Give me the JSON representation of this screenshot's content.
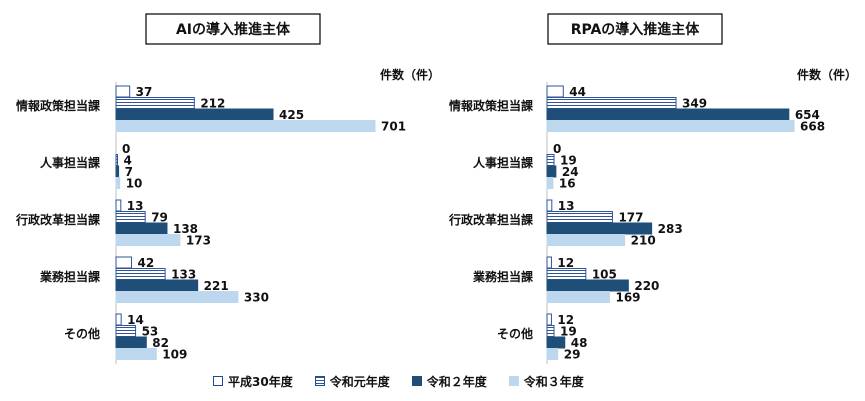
{
  "colors": {
    "s1_fill": "#ffffff",
    "s1_border": "#2f5597",
    "s2_stripe": "#2f5597",
    "s3_fill": "#1f4e79",
    "s4_fill": "#bdd7ee",
    "axis": "#bfbfbf",
    "text": "#111111"
  },
  "legend": {
    "items": [
      "平成30年度",
      "令和元年度",
      "令和２年度",
      "令和３年度"
    ]
  },
  "chart_data": [
    {
      "type": "bar",
      "orientation": "horizontal",
      "title": "AIの導入推進主体",
      "unit_label": "件数（件）",
      "categories": [
        "情報政策担当課",
        "人事担当課",
        "行政改革担当課",
        "業務担当課",
        "その他"
      ],
      "series": [
        {
          "name": "平成30年度",
          "values": [
            37,
            0,
            13,
            42,
            14
          ]
        },
        {
          "name": "令和元年度",
          "values": [
            212,
            4,
            79,
            133,
            53
          ]
        },
        {
          "name": "令和２年度",
          "values": [
            425,
            7,
            138,
            221,
            82
          ]
        },
        {
          "name": "令和３年度",
          "values": [
            701,
            10,
            173,
            330,
            109
          ]
        }
      ],
      "xlim": [
        0,
        701
      ],
      "grid": false,
      "legend_position": "bottom"
    },
    {
      "type": "bar",
      "orientation": "horizontal",
      "title": "RPAの導入推進主体",
      "unit_label": "件数（件）",
      "categories": [
        "情報政策担当課",
        "人事担当課",
        "行政改革担当課",
        "業務担当課",
        "その他"
      ],
      "series": [
        {
          "name": "平成30年度",
          "values": [
            44,
            0,
            13,
            12,
            12
          ]
        },
        {
          "name": "令和元年度",
          "values": [
            349,
            19,
            177,
            105,
            19
          ]
        },
        {
          "name": "令和２年度",
          "values": [
            654,
            24,
            283,
            220,
            48
          ]
        },
        {
          "name": "令和３年度",
          "values": [
            668,
            16,
            210,
            169,
            29
          ]
        }
      ],
      "xlim": [
        0,
        668
      ],
      "grid": false,
      "legend_position": "bottom"
    }
  ]
}
